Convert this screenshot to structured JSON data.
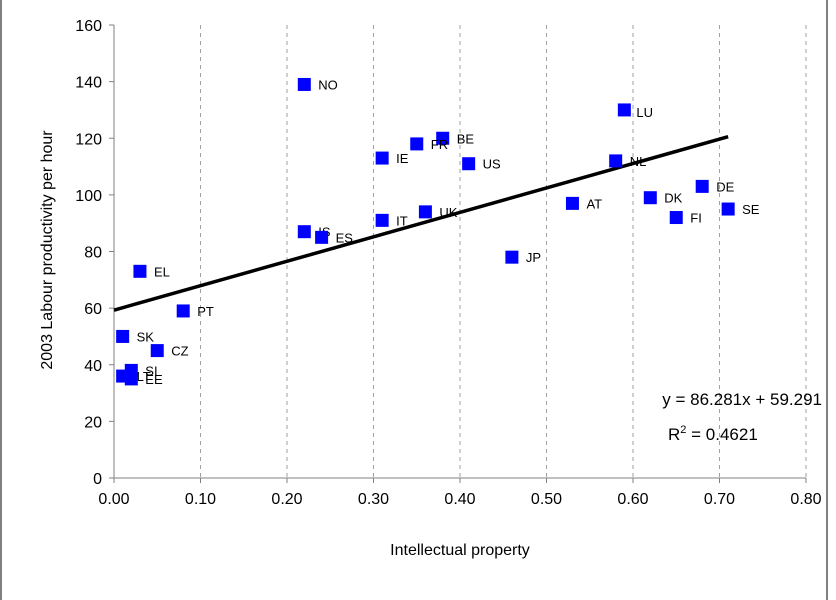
{
  "chart_data": {
    "type": "scatter",
    "title": "",
    "xlabel": "Intellectual property",
    "ylabel": "2003 Labour productivity per hour",
    "xlim": [
      0,
      0.8
    ],
    "ylim": [
      0,
      160
    ],
    "x_ticks": [
      "0.00",
      "0.10",
      "0.20",
      "0.30",
      "0.40",
      "0.50",
      "0.60",
      "0.70",
      "0.80"
    ],
    "y_ticks": [
      "0",
      "20",
      "40",
      "60",
      "80",
      "100",
      "120",
      "140",
      "160"
    ],
    "grid": "dashed vertical lines at x ticks",
    "marker_color": "#0000FF",
    "points": [
      {
        "label": "NO",
        "x": 0.22,
        "y": 139
      },
      {
        "label": "LU",
        "x": 0.59,
        "y": 130
      },
      {
        "label": "BE",
        "x": 0.38,
        "y": 120
      },
      {
        "label": "FR",
        "x": 0.35,
        "y": 118
      },
      {
        "label": "IE",
        "x": 0.31,
        "y": 113
      },
      {
        "label": "US",
        "x": 0.41,
        "y": 111
      },
      {
        "label": "NL",
        "x": 0.58,
        "y": 112
      },
      {
        "label": "DE",
        "x": 0.68,
        "y": 103
      },
      {
        "label": "DK",
        "x": 0.62,
        "y": 99
      },
      {
        "label": "AT",
        "x": 0.53,
        "y": 97
      },
      {
        "label": "SE",
        "x": 0.71,
        "y": 95
      },
      {
        "label": "FI",
        "x": 0.65,
        "y": 92
      },
      {
        "label": "UK",
        "x": 0.36,
        "y": 94
      },
      {
        "label": "IT",
        "x": 0.31,
        "y": 91
      },
      {
        "label": "IS",
        "x": 0.22,
        "y": 87
      },
      {
        "label": "ES",
        "x": 0.24,
        "y": 85
      },
      {
        "label": "JP",
        "x": 0.46,
        "y": 78
      },
      {
        "label": "EL",
        "x": 0.03,
        "y": 73
      },
      {
        "label": "PT",
        "x": 0.08,
        "y": 59
      },
      {
        "label": "SK",
        "x": 0.01,
        "y": 50
      },
      {
        "label": "CZ",
        "x": 0.05,
        "y": 45
      },
      {
        "label": "SI",
        "x": 0.02,
        "y": 38
      },
      {
        "label": "LT",
        "x": 0.01,
        "y": 36
      },
      {
        "label": "EE",
        "x": 0.02,
        "y": 35
      }
    ],
    "trendline": {
      "slope": 86.281,
      "intercept": 59.291,
      "x_range": [
        0,
        0.71
      ],
      "equation": "y = 86.281x + 59.291",
      "r2_prefix": "R",
      "r2_sup": "2",
      "r2_suffix": " = 0.4621"
    }
  }
}
